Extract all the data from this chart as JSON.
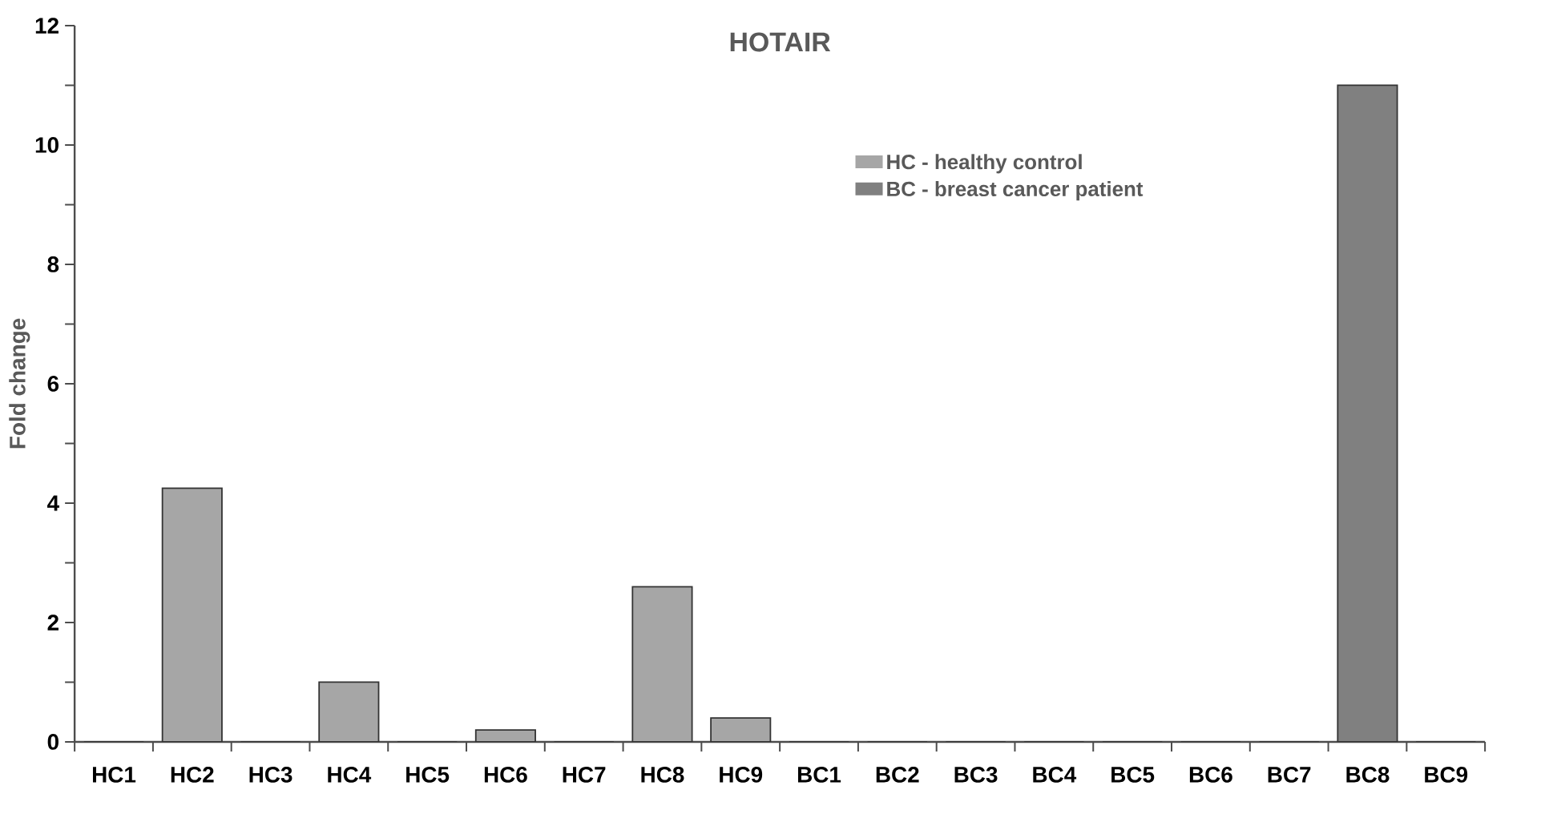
{
  "chart_data": {
    "type": "bar",
    "title": "HOTAIR",
    "ylabel": "Fold change",
    "categories": [
      "HC1",
      "HC2",
      "HC3",
      "HC4",
      "HC5",
      "HC6",
      "HC7",
      "HC8",
      "HC9",
      "BC1",
      "BC2",
      "BC3",
      "BC4",
      "BC5",
      "BC6",
      "BC7",
      "BC8",
      "BC9"
    ],
    "series": [
      {
        "name": "HC - healthy control",
        "color": "#a6a6a6",
        "values": [
          0,
          4.25,
          0,
          1.0,
          0,
          0.2,
          0,
          2.6,
          0.4,
          null,
          null,
          null,
          null,
          null,
          null,
          null,
          null,
          null
        ]
      },
      {
        "name": "BC - breast cancer patient",
        "color": "#808080",
        "values": [
          null,
          null,
          null,
          null,
          null,
          null,
          null,
          null,
          null,
          0,
          0,
          0,
          0,
          0,
          0,
          0,
          11.0,
          0
        ]
      }
    ],
    "ylim": [
      0,
      12
    ],
    "yticks": [
      0,
      {
        "value": 1,
        "label": null
      },
      2,
      {
        "value": 3,
        "label": null
      },
      4,
      {
        "value": 5,
        "label": null
      },
      6,
      {
        "value": 7,
        "label": null
      },
      8,
      {
        "value": 9,
        "label": null
      },
      10,
      {
        "value": 11,
        "label": null
      },
      12
    ],
    "legend": "top right"
  }
}
